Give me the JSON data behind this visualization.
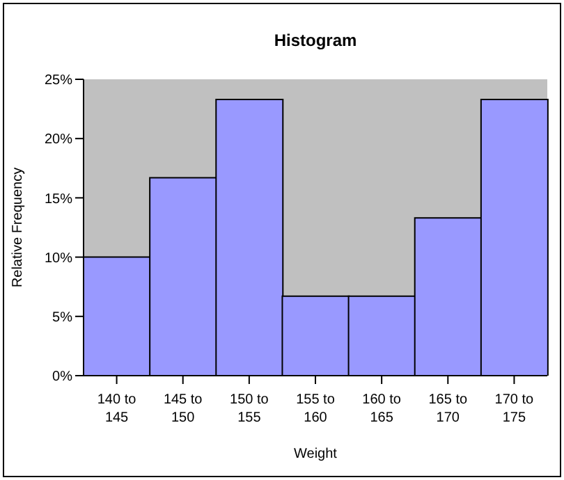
{
  "chart_data": {
    "type": "bar",
    "title": "Histogram",
    "xlabel": "Weight",
    "ylabel": "Relative Frequency",
    "categories": [
      "140 to 145",
      "145 to 150",
      "150 to 155",
      "155 to 160",
      "160 to 165",
      "165 to 170",
      "170 to 175"
    ],
    "values": [
      10,
      16.7,
      23.3,
      6.7,
      6.7,
      13.3,
      23.3
    ],
    "color": "#9999ff",
    "ylim": [
      0,
      25
    ],
    "yticks": [
      {
        "value": 0,
        "label": "0%"
      },
      {
        "value": 5,
        "label": "5%"
      },
      {
        "value": 10,
        "label": "10%"
      },
      {
        "value": 15,
        "label": "15%"
      },
      {
        "value": 20,
        "label": "20%"
      },
      {
        "value": 25,
        "label": "25%"
      }
    ],
    "grid": false,
    "legend": false
  }
}
